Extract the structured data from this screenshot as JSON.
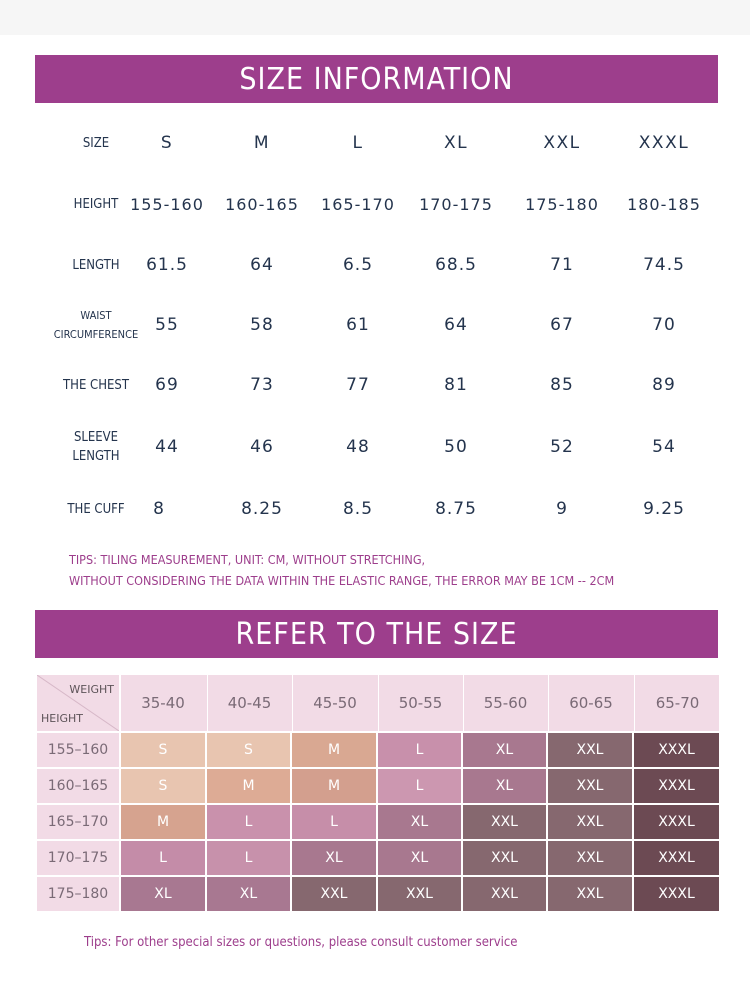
{
  "size_info": {
    "title": "SIZE INFORMATION",
    "rows": [
      {
        "label": "SIZE",
        "values": [
          "S",
          "M",
          "L",
          "XL",
          "XXL",
          "XXXL"
        ]
      },
      {
        "label": "HEIGHT",
        "values": [
          "155-160",
          "160-165",
          "165-170",
          "170-175",
          "175-180",
          "180-185"
        ]
      },
      {
        "label": "LENGTH",
        "values": [
          "61.5",
          "64",
          "6.5",
          "68.5",
          "71",
          "74.5"
        ]
      },
      {
        "label": "WAIST CIRCUMFERENCE",
        "label_line1": "WAIST",
        "label_line2": "CIRCUMFERENCE",
        "values": [
          "55",
          "58",
          "61",
          "64",
          "67",
          "70"
        ]
      },
      {
        "label": "THE CHEST",
        "values": [
          "69",
          "73",
          "77",
          "81",
          "85",
          "89"
        ]
      },
      {
        "label": "SLEEVE LENGTH",
        "label_line1": "SLEEVE",
        "label_line2": "LENGTH",
        "values": [
          "44",
          "46",
          "48",
          "50",
          "52",
          "54"
        ]
      },
      {
        "label": "THE CUFF",
        "values": [
          "8",
          "8.25",
          "8.5",
          "8.75",
          "9",
          "9.25"
        ]
      }
    ],
    "tips_line1": "TIPS: TILING MEASUREMENT, UNIT: CM, WITHOUT STRETCHING,",
    "tips_line2": "WITHOUT CONSIDERING THE DATA WITHIN THE ELASTIC RANGE, THE ERROR MAY BE 1CM -- 2CM"
  },
  "refer": {
    "title": "REFER TO THE SIZE",
    "weight_label": "WEIGHT",
    "height_label": "HEIGHT",
    "weights": [
      "35-40",
      "40-45",
      "45-50",
      "50-55",
      "55-60",
      "60-65",
      "65-70"
    ],
    "heights": [
      "155–160",
      "160–165",
      "165–170",
      "170–175",
      "175–180"
    ],
    "grid": [
      [
        "S",
        "S",
        "M",
        "L",
        "XL",
        "XXL",
        "XXXL"
      ],
      [
        "S",
        "M",
        "M",
        "L",
        "XL",
        "XXL",
        "XXXL"
      ],
      [
        "M",
        "L",
        "L",
        "XL",
        "XXL",
        "XXL",
        "XXXL"
      ],
      [
        "L",
        "L",
        "XL",
        "XL",
        "XXL",
        "XXL",
        "XXXL"
      ],
      [
        "XL",
        "XL",
        "XXL",
        "XXL",
        "XXL",
        "XXL",
        "XXXL"
      ]
    ],
    "size_colors": {
      "S": "#e8c5b0",
      "M": "#d9a892",
      "L": "#c48ca6",
      "XL": "#a8788f",
      "XXL": "#86686f",
      "XXXL": "#6c4a53"
    },
    "cell_overrides": [
      {
        "row": 0,
        "col": 3,
        "color": "#c890ab"
      },
      {
        "row": 1,
        "col": 1,
        "color": "#ddab95"
      },
      {
        "row": 1,
        "col": 2,
        "color": "#d39f8e"
      },
      {
        "row": 1,
        "col": 3,
        "color": "#cc97b0"
      },
      {
        "row": 2,
        "col": 0,
        "color": "#d6a38f"
      },
      {
        "row": 2,
        "col": 1,
        "color": "#c991ac"
      },
      {
        "row": 2,
        "col": 2,
        "color": "#c68ea9"
      },
      {
        "row": 3,
        "col": 0,
        "color": "#c48ca8"
      },
      {
        "row": 3,
        "col": 1,
        "color": "#c791ab"
      },
      {
        "row": 4,
        "col": 0,
        "color": "#a87891"
      },
      {
        "row": 4,
        "col": 1,
        "color": "#a87891"
      }
    ],
    "tips": "Tips: For other special sizes or questions, please consult customer service"
  },
  "colors": {
    "banner": "#9d3e8c",
    "text_dark": "#24344d",
    "header_pink": "#f2dbe6"
  }
}
